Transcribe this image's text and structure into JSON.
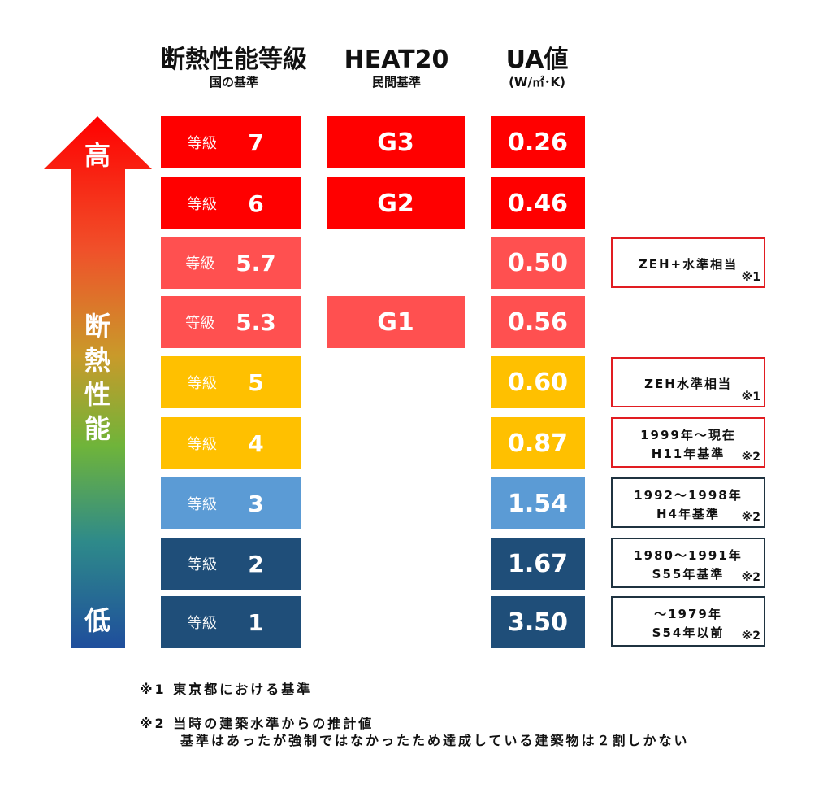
{
  "headers": {
    "grade": {
      "title": "断熱性能等級",
      "sub": "国の基準"
    },
    "heat20": {
      "title": "HEAT20",
      "sub": "民間基準"
    },
    "ua": {
      "title": "UA値",
      "sub": "(W/㎡･K)"
    }
  },
  "arrow": {
    "top": "高",
    "mid": [
      "断",
      "熱",
      "性",
      "能"
    ],
    "bottom": "低"
  },
  "colors": {
    "red": "#ff0000",
    "salmon": "#ff5050",
    "amber": "#ffc000",
    "lightblue": "#5b9bd5",
    "navy": "#1f4e79",
    "note_red": "#e11d22",
    "note_dark": "#1f3340"
  },
  "rows": [
    {
      "grade_label": "等級",
      "grade": "7",
      "heat": "G3",
      "ua": "0.26",
      "color": "red"
    },
    {
      "grade_label": "等級",
      "grade": "6",
      "heat": "G2",
      "ua": "0.46",
      "color": "red"
    },
    {
      "grade_label": "等級",
      "grade": "5.7",
      "heat": "",
      "ua": "0.50",
      "color": "salmon"
    },
    {
      "grade_label": "等級",
      "grade": "5.3",
      "heat": "G1",
      "ua": "0.56",
      "color": "salmon"
    },
    {
      "grade_label": "等級",
      "grade": "5",
      "heat": "",
      "ua": "0.60",
      "color": "amber"
    },
    {
      "grade_label": "等級",
      "grade": "4",
      "heat": "",
      "ua": "0.87",
      "color": "amber"
    },
    {
      "grade_label": "等級",
      "grade": "3",
      "heat": "",
      "ua": "1.54",
      "color": "lightblue"
    },
    {
      "grade_label": "等級",
      "grade": "2",
      "heat": "",
      "ua": "1.67",
      "color": "navy"
    },
    {
      "grade_label": "等級",
      "grade": "1",
      "heat": "",
      "ua": "3.50",
      "color": "navy"
    }
  ],
  "notes": [
    {
      "line1": "ZEH+水準相当",
      "line2": "",
      "mark": "※1"
    },
    {
      "line1": "ZEH水準相当",
      "line2": "",
      "mark": "※1"
    },
    {
      "line1": "1999年～現在",
      "line2": "H11年基準",
      "mark": "※2"
    },
    {
      "line1": "1992～1998年",
      "line2": "H4年基準",
      "mark": "※2"
    },
    {
      "line1": "1980～1991年",
      "line2": "S55年基準",
      "mark": "※2"
    },
    {
      "line1": "～1979年",
      "line2": "S54年以前",
      "mark": "※2"
    }
  ],
  "footnotes": [
    "※1 東京都における基準",
    "※2 当時の建築水準からの推計値",
    "基準はあったが強制ではなかったため達成している建築物は２割しかない"
  ]
}
